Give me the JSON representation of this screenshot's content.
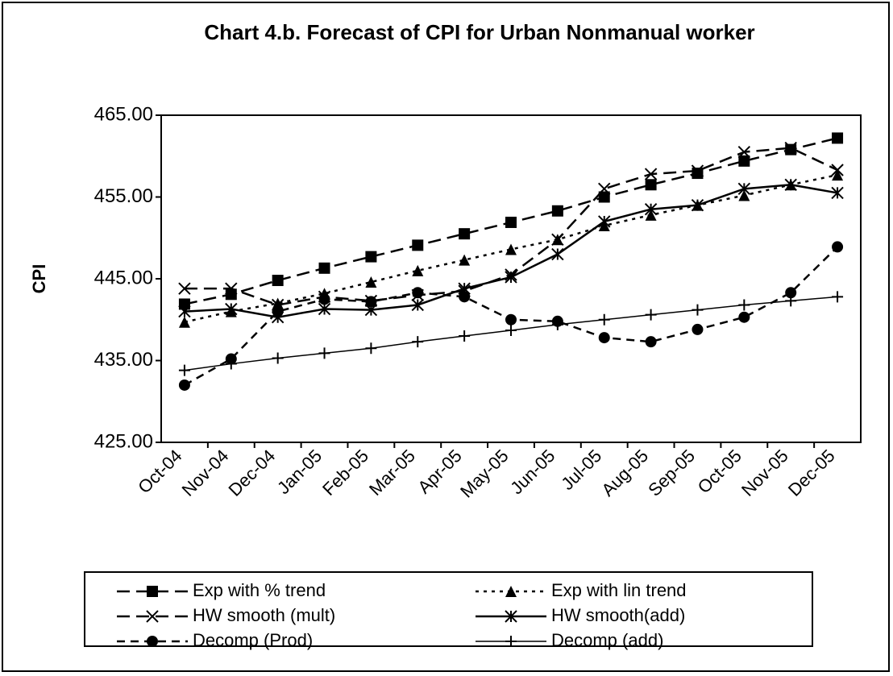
{
  "chart_data": {
    "type": "line",
    "title": "Chart 4.b. Forecast of CPI for Urban Nonmanual worker",
    "y_label": "CPI",
    "categories": [
      "Oct-04",
      "Nov-04",
      "Dec-04",
      "Jan-05",
      "Feb-05",
      "Mar-05",
      "Apr-05",
      "May-05",
      "Jun-05",
      "Jul-05",
      "Aug-05",
      "Sep-05",
      "Oct-05",
      "Nov-05",
      "Dec-05"
    ],
    "ylim": [
      425,
      465
    ],
    "yticks": [
      {
        "value": 425,
        "label": "425.00"
      },
      {
        "value": 435,
        "label": "435.00"
      },
      {
        "value": 445,
        "label": "445.00"
      },
      {
        "value": 455,
        "label": "455.00"
      },
      {
        "value": 465,
        "label": "465.00"
      }
    ],
    "series": [
      {
        "name": "Exp with % trend",
        "color": "#000000",
        "marker": "square",
        "line_style": "longdash",
        "values": [
          441.9,
          443.1,
          444.8,
          446.3,
          447.7,
          449.1,
          450.5,
          451.9,
          453.3,
          455.0,
          456.5,
          457.9,
          459.4,
          460.8,
          462.2
        ]
      },
      {
        "name": "Exp with lin trend",
        "color": "#000000",
        "marker": "triangle",
        "line_style": "dotted",
        "values": [
          439.7,
          441.0,
          442.0,
          443.2,
          444.6,
          446.0,
          447.3,
          448.6,
          449.8,
          451.5,
          452.8,
          454.0,
          455.2,
          456.5,
          457.7
        ]
      },
      {
        "name": "HW smooth (mult)",
        "color": "#000000",
        "marker": "x",
        "line_style": "longdash",
        "values": [
          443.8,
          443.8,
          441.8,
          442.8,
          442.3,
          443.0,
          443.5,
          445.5,
          449.8,
          456.0,
          457.8,
          458.2,
          460.5,
          461.0,
          458.3
        ]
      },
      {
        "name": "HW smooth(add)",
        "color": "#000000",
        "marker": "asterisk",
        "line_style": "solid",
        "values": [
          441.0,
          441.3,
          440.3,
          441.3,
          441.2,
          441.8,
          443.8,
          445.2,
          448.0,
          452.0,
          453.5,
          454.0,
          456.0,
          456.5,
          455.5
        ]
      },
      {
        "name": "Decomp (Prod)",
        "color": "#000000",
        "marker": "circle",
        "line_style": "dash",
        "values": [
          432.0,
          435.2,
          441.0,
          442.5,
          442.2,
          443.3,
          442.8,
          440.0,
          439.8,
          437.8,
          437.3,
          438.8,
          440.3,
          443.3,
          448.9
        ]
      },
      {
        "name": "Decomp (add)",
        "color": "#000000",
        "marker": "plus",
        "line_style": "thin",
        "values": [
          433.8,
          434.6,
          435.3,
          435.9,
          436.5,
          437.3,
          438.0,
          438.7,
          439.4,
          440.0,
          440.6,
          441.2,
          441.8,
          442.3,
          442.8
        ]
      }
    ]
  }
}
